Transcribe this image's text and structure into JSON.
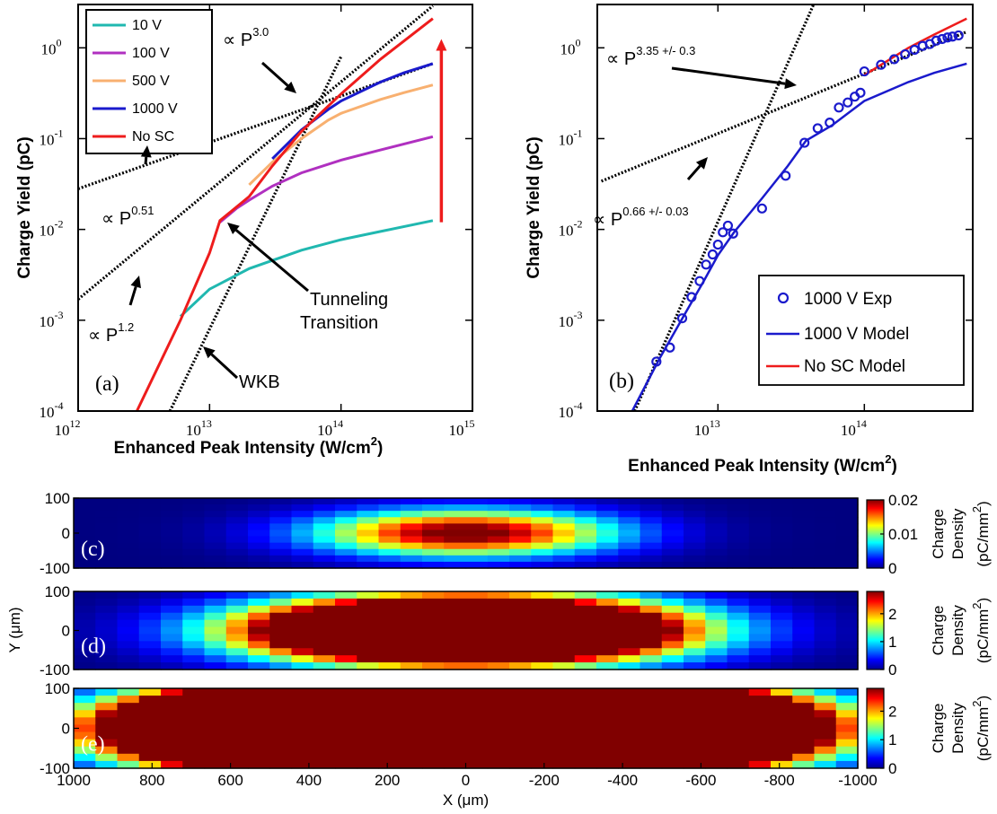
{
  "chart_data": [
    {
      "panel": "(a)",
      "type": "line",
      "xlabel": "Enhanced Peak Intensity (W/cm",
      "xlabel_sup": "2",
      "xlabel_end": ")",
      "ylabel": "Charge Yield (pC)",
      "xscale": "log",
      "yscale": "log",
      "xlim": [
        1000000000000.0,
        1000000000000000.0
      ],
      "ylim": [
        0.0001,
        3
      ],
      "x_ticks": [
        {
          "base": "10",
          "exp": "12"
        },
        {
          "base": "10",
          "exp": "13"
        },
        {
          "base": "10",
          "exp": "14"
        },
        {
          "base": "10",
          "exp": "15"
        }
      ],
      "y_ticks": [
        {
          "base": "10",
          "exp": "-4"
        },
        {
          "base": "10",
          "exp": "-3"
        },
        {
          "base": "10",
          "exp": "-2"
        },
        {
          "base": "10",
          "exp": "-1"
        },
        {
          "base": "10",
          "exp": "0"
        }
      ],
      "legend_position": "top-left",
      "series": [
        {
          "name": "10 V",
          "color": "#20b8b0",
          "x": [
            6000000000000.0,
            10000000000000.0,
            20000000000000.0,
            50000000000000.0,
            100000000000000.0,
            200000000000000.0,
            500000000000000.0
          ],
          "y": [
            0.0011,
            0.0022,
            0.0037,
            0.0059,
            0.0077,
            0.0095,
            0.0125
          ]
        },
        {
          "name": "100 V",
          "color": "#b030c0",
          "x": [
            12000000000000.0,
            16000000000000.0,
            20000000000000.0,
            30000000000000.0,
            50000000000000.0,
            100000000000000.0,
            200000000000000.0,
            500000000000000.0
          ],
          "y": [
            0.012,
            0.017,
            0.021,
            0.03,
            0.042,
            0.058,
            0.075,
            0.105
          ]
        },
        {
          "name": "500 V",
          "color": "#f8b070",
          "x": [
            20000000000000.0,
            30000000000000.0,
            50000000000000.0,
            80000000000000.0,
            100000000000000.0,
            200000000000000.0,
            300000000000000.0,
            500000000000000.0
          ],
          "y": [
            0.031,
            0.055,
            0.1,
            0.16,
            0.19,
            0.27,
            0.32,
            0.39
          ]
        },
        {
          "name": "1000 V",
          "color": "#1a1acc",
          "x": [
            30000000000000.0,
            50000000000000.0,
            80000000000000.0,
            100000000000000.0,
            200000000000000.0,
            300000000000000.0,
            500000000000000.0
          ],
          "y": [
            0.06,
            0.125,
            0.21,
            0.26,
            0.42,
            0.53,
            0.67
          ]
        },
        {
          "name": "No SC",
          "color": "#ee1c1c",
          "x": [
            2800000000000.0,
            6000000000000.0,
            10000000000000.0,
            12000000000000.0,
            20000000000000.0,
            30000000000000.0,
            50000000000000.0,
            100000000000000.0,
            200000000000000.0,
            500000000000000.0
          ],
          "y": [
            0.0001,
            0.001,
            0.0055,
            0.0125,
            0.023,
            0.05,
            0.12,
            0.31,
            0.75,
            2.1
          ]
        }
      ],
      "fit_lines": [
        {
          "label": "∝ P",
          "exp": "3.0",
          "x": [
            5000000000000.0,
            100000000000000.0
          ],
          "y": [
            0.0001,
            0.8
          ]
        },
        {
          "label": "∝ P",
          "exp": "0.51",
          "x": [
            1000000000000.0,
            500000000000000.0
          ],
          "y": [
            0.028,
            0.67
          ]
        },
        {
          "label": "∝ P",
          "exp": "1.2",
          "x": [
            1000000000000.0,
            500000000000000.0
          ],
          "y": [
            0.0017,
            2.9
          ]
        }
      ],
      "annotations": [
        {
          "text": "Tunneling",
          "text2": "Transition"
        },
        {
          "text": "WKB"
        }
      ]
    },
    {
      "panel": "(b)",
      "type": "scatter",
      "xlabel": "Enhanced Peak Intensity (W/cm",
      "xlabel_sup": "2",
      "xlabel_end": ")",
      "ylabel": "Charge Yield (pC)",
      "xscale": "log",
      "yscale": "log",
      "xlim": [
        1500000000000.0,
        550000000000000.0
      ],
      "ylim": [
        0.0001,
        3
      ],
      "x_ticks": [
        {
          "base": "10",
          "exp": "13"
        },
        {
          "base": "10",
          "exp": "14"
        }
      ],
      "y_ticks": [
        {
          "base": "10",
          "exp": "-4"
        },
        {
          "base": "10",
          "exp": "-3"
        },
        {
          "base": "10",
          "exp": "-2"
        },
        {
          "base": "10",
          "exp": "-1"
        },
        {
          "base": "10",
          "exp": "0"
        }
      ],
      "legend_position": "bottom-right",
      "series": [
        {
          "name": "1000 V Exp",
          "color": "#1a1acc",
          "marker": "circle",
          "x": [
            3800000000000.0,
            4700000000000.0,
            5700000000000.0,
            6600000000000.0,
            7500000000000.0,
            8300000000000.0,
            9200000000000.0,
            10000000000000.0,
            10800000000000.0,
            11700000000000.0,
            12700000000000.0,
            20000000000000.0,
            29000000000000.0,
            39000000000000.0,
            48000000000000.0,
            58000000000000.0,
            67000000000000.0,
            77000000000000.0,
            86000000000000.0,
            94000000000000.0,
            100000000000000.0,
            130000000000000.0,
            160000000000000.0,
            190000000000000.0,
            220000000000000.0,
            250000000000000.0,
            280000000000000.0,
            310000000000000.0,
            340000000000000.0,
            370000000000000.0,
            400000000000000.0,
            440000000000000.0
          ],
          "y": [
            0.00035,
            0.0005,
            0.00105,
            0.0018,
            0.0027,
            0.0041,
            0.0053,
            0.0068,
            0.0093,
            0.011,
            0.009,
            0.017,
            0.039,
            0.09,
            0.13,
            0.15,
            0.22,
            0.25,
            0.29,
            0.32,
            0.55,
            0.65,
            0.75,
            0.85,
            0.95,
            1.05,
            1.1,
            1.2,
            1.25,
            1.3,
            1.33,
            1.37
          ]
        },
        {
          "name": "1000 V Model",
          "color": "#1a1acc",
          "x": [
            2600000000000.0,
            4000000000000.0,
            6000000000000.0,
            8000000000000.0,
            10000000000000.0,
            13000000000000.0,
            17000000000000.0,
            20000000000000.0,
            30000000000000.0,
            40000000000000.0,
            60000000000000.0,
            100000000000000.0,
            200000000000000.0,
            300000000000000.0,
            500000000000000.0
          ],
          "y": [
            0.0001,
            0.00038,
            0.0012,
            0.0027,
            0.0052,
            0.0095,
            0.016,
            0.022,
            0.05,
            0.095,
            0.14,
            0.26,
            0.42,
            0.53,
            0.67
          ]
        },
        {
          "name": "No SC Model",
          "color": "#ee1c1c",
          "x": [
            100000000000000.0,
            150000000000000.0,
            200000000000000.0,
            300000000000000.0,
            500000000000000.0
          ],
          "y": [
            0.5,
            0.75,
            1.0,
            1.4,
            2.1
          ]
        }
      ],
      "fit_lines": [
        {
          "label": "∝ P",
          "exp": "3.35 +/- 0.3",
          "x": [
            2700000000000.0,
            45000000000000.0
          ],
          "y": [
            0.0001,
            3
          ]
        },
        {
          "label": "∝ P",
          "exp": "0.66 +/- 0.03",
          "x": [
            1600000000000.0,
            500000000000000.0
          ],
          "y": [
            0.034,
            1.5
          ]
        }
      ]
    },
    {
      "panel": "(c)",
      "type": "heatmap",
      "xlim": [
        1000,
        -1000
      ],
      "ylim": [
        -100,
        100
      ],
      "y_ticks": [
        "100",
        "0",
        "-100"
      ],
      "colorbar_ticks": [
        "0.02",
        "0.01",
        "0"
      ],
      "colorbar_range": [
        0,
        0.02
      ],
      "peak": 0.0215,
      "sigma_x": 260,
      "sigma_y": 45,
      "colorbar_label_1": "Charge",
      "colorbar_label_2": "Density",
      "colorbar_label_3": "(pC/mm",
      "colorbar_label_sup": "2",
      "colorbar_label_end": ")"
    },
    {
      "panel": "(d)",
      "type": "heatmap",
      "xlim": [
        1000,
        -1000
      ],
      "ylim": [
        -100,
        100
      ],
      "y_ticks": [
        "100",
        "0",
        "-100"
      ],
      "colorbar_ticks": [
        "2",
        "1",
        "0"
      ],
      "colorbar_range": [
        0,
        2.8
      ],
      "peak": 10,
      "sigma_x": 330,
      "sigma_y": 52,
      "colorbar_label_1": "Charge",
      "colorbar_label_2": "Density",
      "colorbar_label_3": "(pC/mm",
      "colorbar_label_sup": "2",
      "colorbar_label_end": ")"
    },
    {
      "panel": "(e)",
      "type": "heatmap",
      "xlim": [
        1000,
        -1000
      ],
      "ylim": [
        -100,
        100
      ],
      "y_ticks": [
        "100",
        "0",
        "-100"
      ],
      "x_ticks": [
        "1000",
        "800",
        "600",
        "400",
        "200",
        "0",
        "-200",
        "-400",
        "-600",
        "-800",
        "-1000"
      ],
      "colorbar_ticks": [
        "2",
        "1",
        "0"
      ],
      "colorbar_range": [
        0,
        2.8
      ],
      "peak": 60,
      "sigma_x": 380,
      "sigma_y": 58,
      "colorbar_label_1": "Charge",
      "colorbar_label_2": "Density",
      "colorbar_label_3": "(pC/mm",
      "colorbar_label_sup": "2",
      "colorbar_label_end": ")"
    }
  ],
  "shared": {
    "ylabel_heatmap": "Y (μm)",
    "xlabel_heatmap": "X (μm)"
  }
}
